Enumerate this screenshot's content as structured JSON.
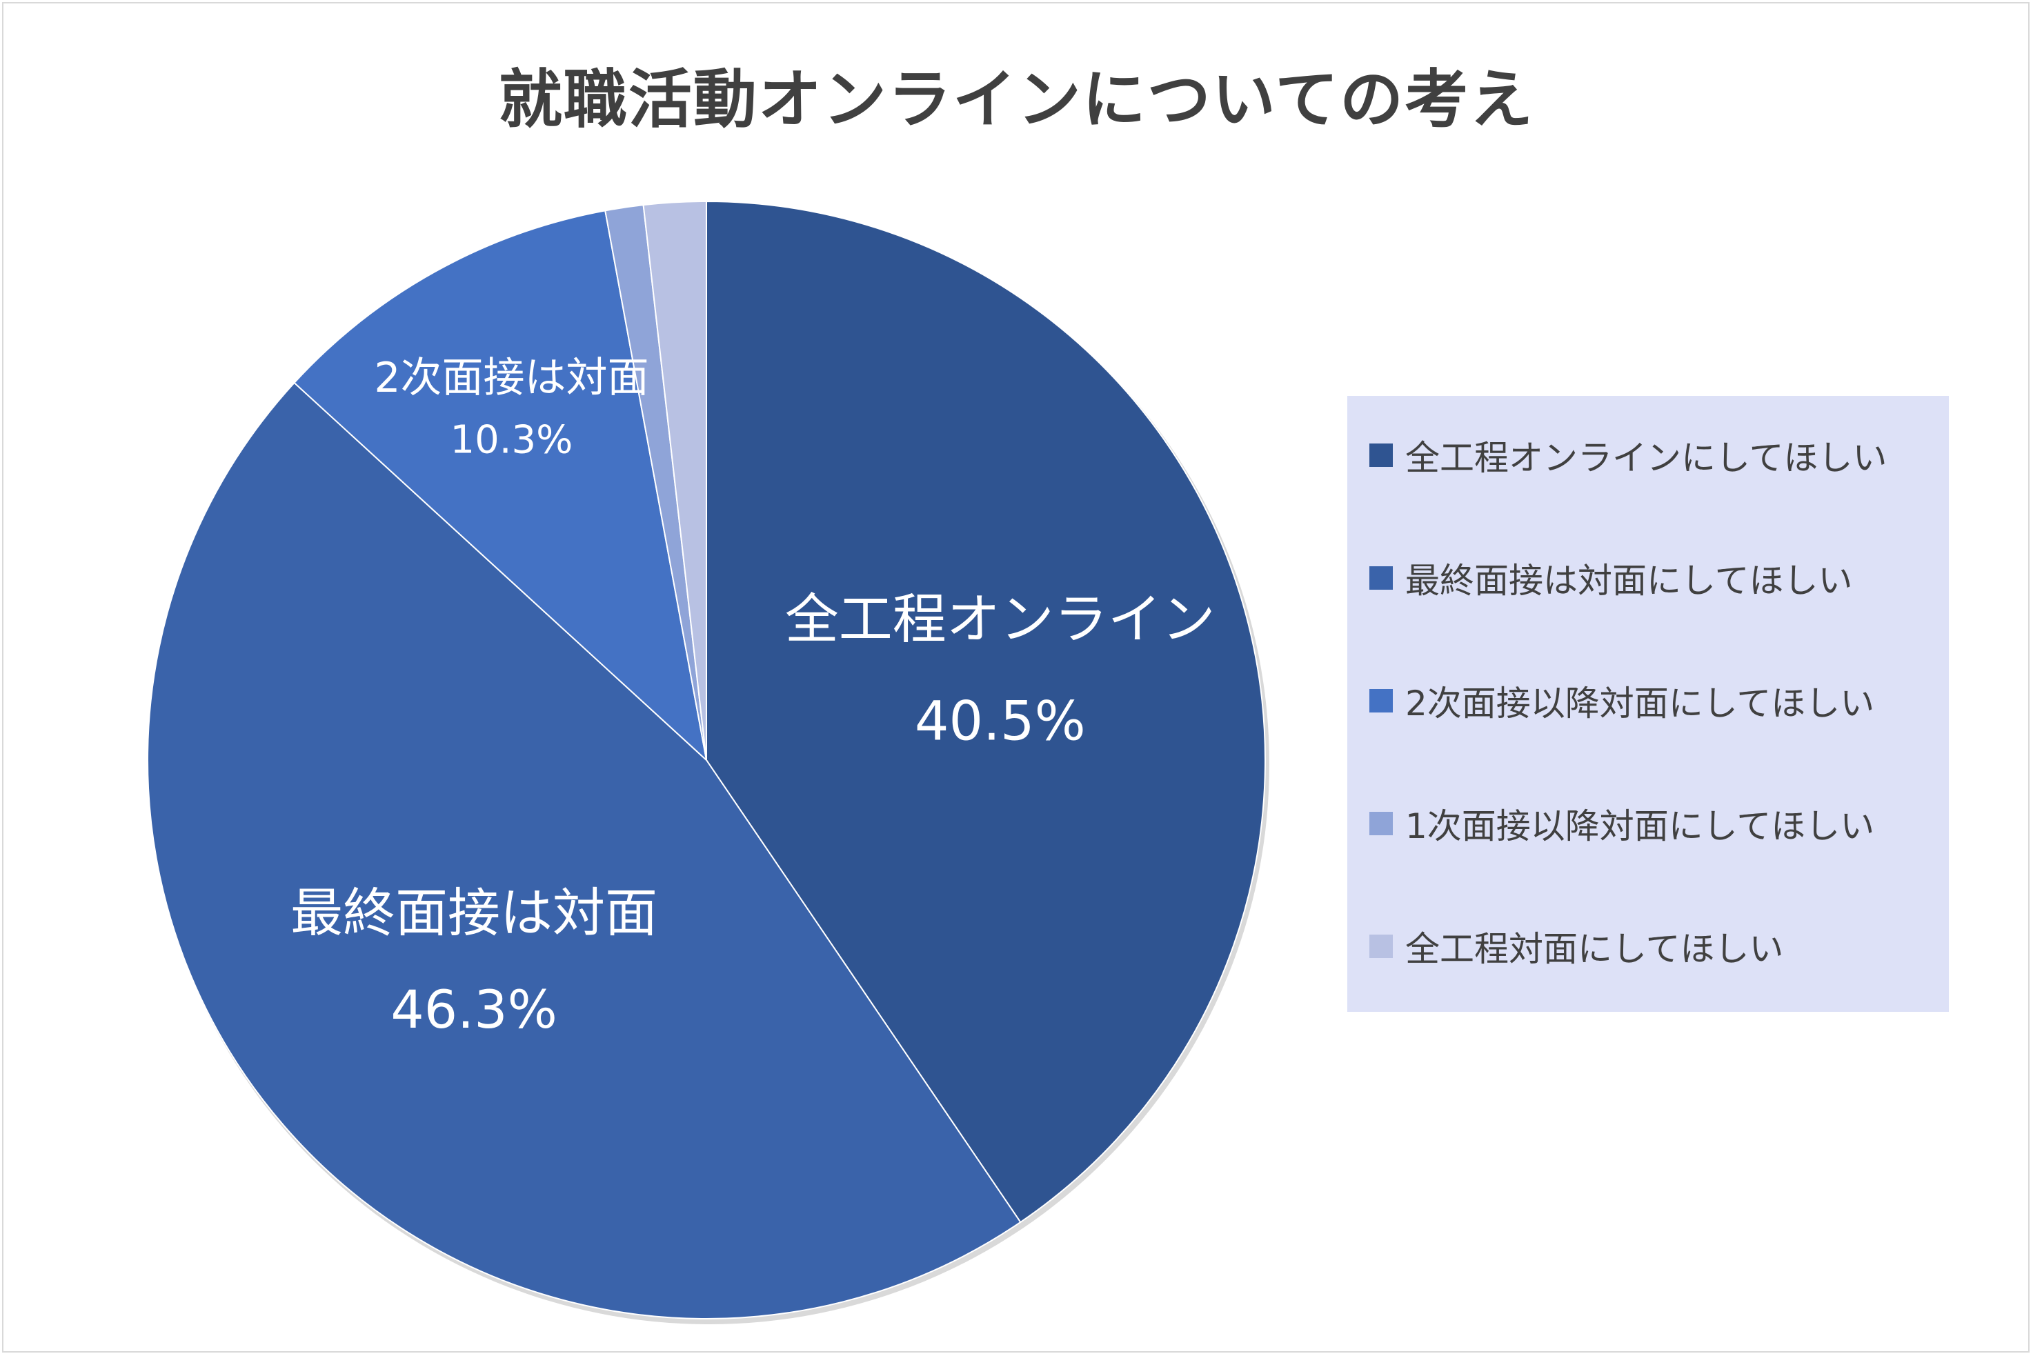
{
  "chart_data": {
    "type": "pie",
    "title": "就職活動オンラインについての考え",
    "slices": [
      {
        "name": "全工程オンラインにしてほしい",
        "value": 40.5,
        "color": "#2f5491",
        "label_line1": "全工程オンライン",
        "label_line2": "40.5%"
      },
      {
        "name": "最終面接は対面にしてほしい",
        "value": 46.3,
        "color": "#3a63aa",
        "label_line1": "最終面接は対面",
        "label_line2": "46.3%"
      },
      {
        "name": "2次面接以降対面にしてほしい",
        "value": 10.3,
        "color": "#4472c4",
        "label_line1": "2次面接は対面",
        "label_line2": "10.3%"
      },
      {
        "name": "1次面接以降対面にしてほしい",
        "value": 1.1,
        "color": "#8fa4d8",
        "label_line1": "",
        "label_line2": ""
      },
      {
        "name": "全工程対面にしてほしい",
        "value": 1.8,
        "color": "#b8c1e3",
        "label_line1": "",
        "label_line2": ""
      }
    ],
    "legend_position": "right"
  }
}
